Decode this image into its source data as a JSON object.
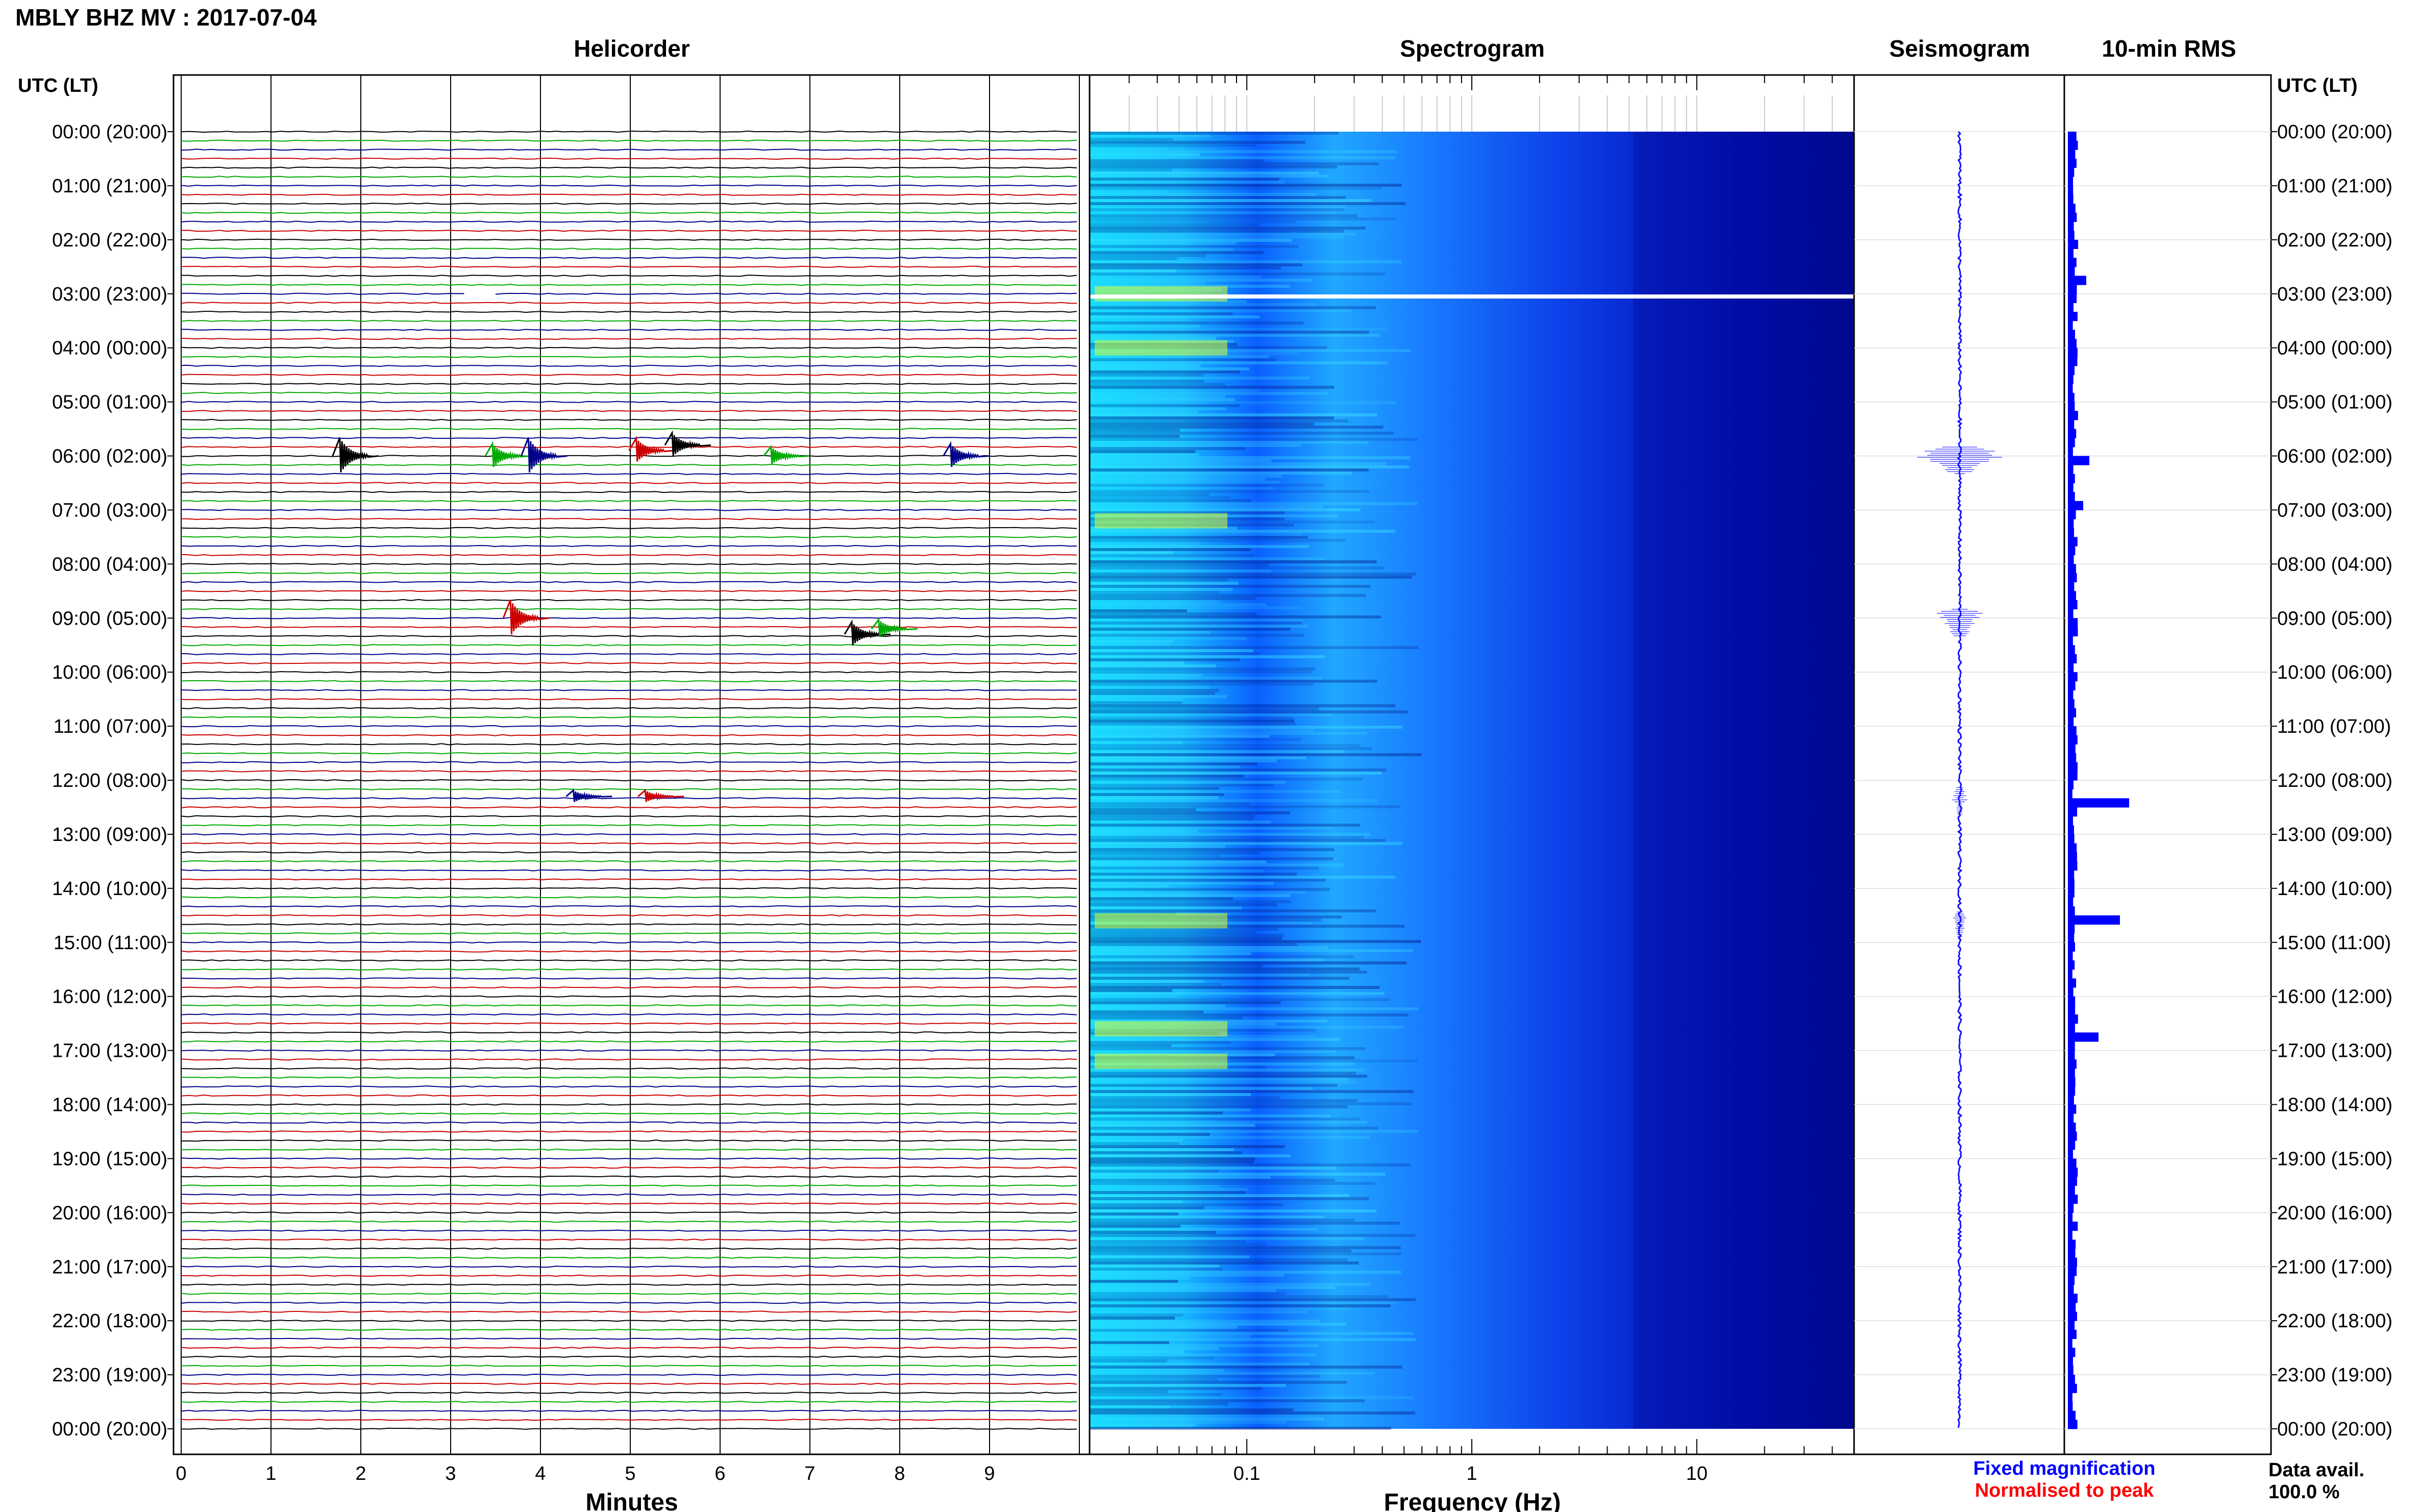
{
  "header": {
    "title": "MBLY BHZ MV : 2017-07-04"
  },
  "panels": {
    "helicorder": "Helicorder",
    "spectrogram": "Spectrogram",
    "seismogram": "Seismogram",
    "rms": "10-min RMS"
  },
  "axis": {
    "time_label_left": "UTC (LT)",
    "time_label_right": "UTC (LT)",
    "minutes_label": "Minutes",
    "frequency_label": "Frequency (Hz)"
  },
  "footer": {
    "legend_fixed": "Fixed magnification",
    "legend_normalised": "Normalised to peak",
    "data_avail_label": "Data avail.",
    "data_avail_value": "100.0 %"
  },
  "colors": {
    "fixed_magnification": "#0000ff",
    "normalised_to_peak": "#ff0000",
    "trace_cycle": [
      "#000000",
      "#00aa00",
      "#00008b",
      "#cc0000"
    ],
    "seismogram": "#1010ff",
    "rms_bar": "#0000ff",
    "spectrogram_low": "#00008f",
    "spectrogram_high": "#d8ff30"
  },
  "chart_data": [
    {
      "type": "line",
      "name": "helicorder",
      "x_ticks": [
        "0",
        "1",
        "2",
        "3",
        "4",
        "5",
        "6",
        "7",
        "8",
        "9"
      ],
      "xlim": [
        0,
        10
      ],
      "xlabel": "Minutes",
      "time_ticks": [
        "00:00 (20:00)",
        "01:00 (21:00)",
        "02:00 (22:00)",
        "03:00 (23:00)",
        "04:00 (00:00)",
        "05:00 (01:00)",
        "06:00 (02:00)",
        "07:00 (03:00)",
        "08:00 (04:00)",
        "09:00 (05:00)",
        "10:00 (06:00)",
        "11:00 (07:00)",
        "12:00 (08:00)",
        "13:00 (09:00)",
        "14:00 (10:00)",
        "15:00 (11:00)",
        "16:00 (12:00)",
        "17:00 (13:00)",
        "18:00 (14:00)",
        "19:00 (15:00)",
        "20:00 (16:00)",
        "21:00 (17:00)",
        "22:00 (18:00)",
        "23:00 (19:00)",
        "00:00 (20:00)"
      ],
      "rows_per_hour": 6,
      "row_count": 144,
      "events": [
        {
          "hour": 6.0,
          "minute": 1.8,
          "amp": 3
        },
        {
          "hour": 6.0,
          "minute": 3.5,
          "amp": 2
        },
        {
          "hour": 6.0,
          "minute": 3.9,
          "amp": 3
        },
        {
          "hour": 5.9,
          "minute": 5.1,
          "amp": 2
        },
        {
          "hour": 5.8,
          "minute": 5.5,
          "amp": 2
        },
        {
          "hour": 6.0,
          "minute": 6.6,
          "amp": 1.5
        },
        {
          "hour": 6.0,
          "minute": 8.6,
          "amp": 2
        },
        {
          "hour": 9.0,
          "minute": 3.7,
          "amp": 3
        },
        {
          "hour": 9.3,
          "minute": 7.5,
          "amp": 2
        },
        {
          "hour": 9.2,
          "minute": 7.8,
          "amp": 1.5
        },
        {
          "hour": 12.3,
          "minute": 4.4,
          "amp": 1
        },
        {
          "hour": 12.3,
          "minute": 5.2,
          "amp": 1
        }
      ],
      "gaps": [
        {
          "hour": 3.0,
          "minute_start": 3.15,
          "minute_end": 3.5
        }
      ]
    },
    {
      "type": "heatmap",
      "name": "spectrogram",
      "xscale": "log",
      "xlim": [
        0.02,
        50
      ],
      "x_ticks": [
        "0.1",
        "1",
        "10"
      ],
      "xlabel": "Frequency (Hz)",
      "white_rows_hours": [
        3.05
      ],
      "high_energy_hours": [
        3.0,
        4.0,
        7.2,
        14.6,
        16.6,
        17.2
      ]
    },
    {
      "type": "line",
      "name": "seismogram",
      "bursts": [
        {
          "hour": 6.1,
          "amp": 0.55
        },
        {
          "hour": 9.1,
          "amp": 0.35
        },
        {
          "hour": 12.4,
          "amp": 0.12
        },
        {
          "hour": 14.7,
          "amp": 0.1
        }
      ]
    },
    {
      "type": "bar",
      "name": "10-min RMS",
      "orientation": "horizontal",
      "bins_per_hour": 6,
      "peaks": [
        {
          "hour": 6.1,
          "value": 0.35
        },
        {
          "hour": 12.4,
          "value": 1.0
        },
        {
          "hour": 14.6,
          "value": 0.85
        },
        {
          "hour": 16.7,
          "value": 0.5
        },
        {
          "hour": 2.8,
          "value": 0.3
        },
        {
          "hour": 6.9,
          "value": 0.25
        }
      ],
      "baseline": 0.12
    }
  ]
}
